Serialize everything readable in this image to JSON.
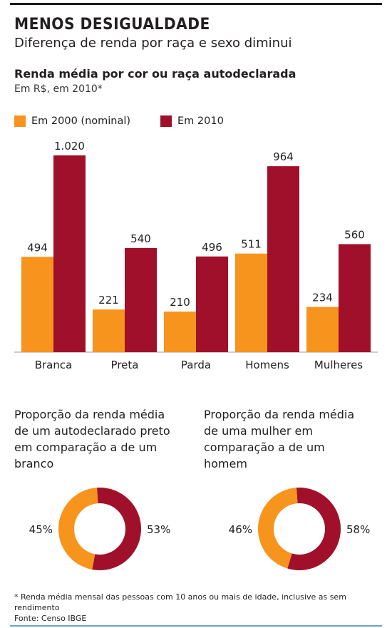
{
  "title": "MENOS DESIGUALDADE",
  "subtitle": "Diferença de renda por raça e sexo diminui",
  "colors": {
    "s2000": "#f7941d",
    "s2010": "#a0102a"
  },
  "chart_data": [
    {
      "type": "bar",
      "title": "Renda média por cor ou raça autodeclarada",
      "ylabel": "Em R$, em 2010*",
      "categories": [
        "Branca",
        "Preta",
        "Parda",
        "Homens",
        "Mulheres"
      ],
      "series": [
        {
          "name": "Em 2000 (nominal)",
          "values": [
            494,
            221,
            210,
            511,
            234
          ],
          "labels": [
            "494",
            "221",
            "210",
            "511",
            "234"
          ]
        },
        {
          "name": "Em 2010",
          "values": [
            1020,
            540,
            496,
            964,
            560
          ],
          "labels": [
            "1.020",
            "540",
            "496",
            "964",
            "560"
          ]
        }
      ],
      "legend": "top-left",
      "grid": false
    },
    {
      "type": "pie",
      "title": "Proporção da renda média de um autodeclarado preto em comparação a de um branco",
      "slices": [
        {
          "label": "45%",
          "value": 45
        },
        {
          "label": "53%",
          "value": 53
        }
      ]
    },
    {
      "type": "pie",
      "title": "Proporção da renda média de uma mulher em comparação a de um homem",
      "slices": [
        {
          "label": "46%",
          "value": 46
        },
        {
          "label": "58%",
          "value": 58
        }
      ]
    }
  ],
  "footnote": "* Renda média mensal das pessoas com 10 anos ou mais de idade, inclusive as sem rendimento",
  "source": "Fonte: Censo IBGE"
}
